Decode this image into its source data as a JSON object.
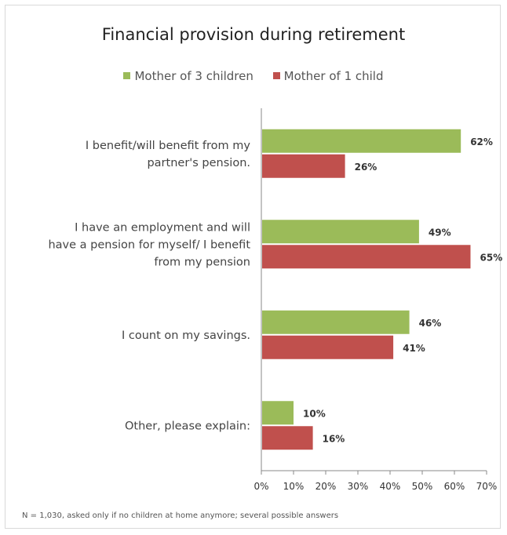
{
  "chart_data": {
    "type": "bar",
    "orientation": "horizontal",
    "title": "Financial provision during retirement",
    "categories": [
      [
        "I benefit/will benefit from my",
        "partner's pension."
      ],
      [
        "I have an employment and will",
        "have a pension for myself/ I benefit",
        "from my pension"
      ],
      [
        "I count on my savings."
      ],
      [
        "Other, please explain:"
      ]
    ],
    "series": [
      {
        "name": "Mother of 3 children",
        "color": "#9bbb59",
        "values": [
          62,
          49,
          46,
          10
        ],
        "labels": [
          "62%",
          "49%",
          "46%",
          "10%"
        ]
      },
      {
        "name": "Mother of 1 child",
        "color": "#c0504d",
        "values": [
          26,
          65,
          41,
          16
        ],
        "labels": [
          "26%",
          "65%",
          "41%",
          "16%"
        ]
      }
    ],
    "xlim": [
      0,
      70
    ],
    "xticks": [
      0,
      10,
      20,
      30,
      40,
      50,
      60,
      70
    ],
    "xtick_labels": [
      "0%",
      "10%",
      "20%",
      "30%",
      "40%",
      "50%",
      "60%",
      "70%"
    ],
    "legend_position": "top",
    "grid": false,
    "footnote": "N = 1,030, asked only if no children at home anymore; several possible answers"
  }
}
